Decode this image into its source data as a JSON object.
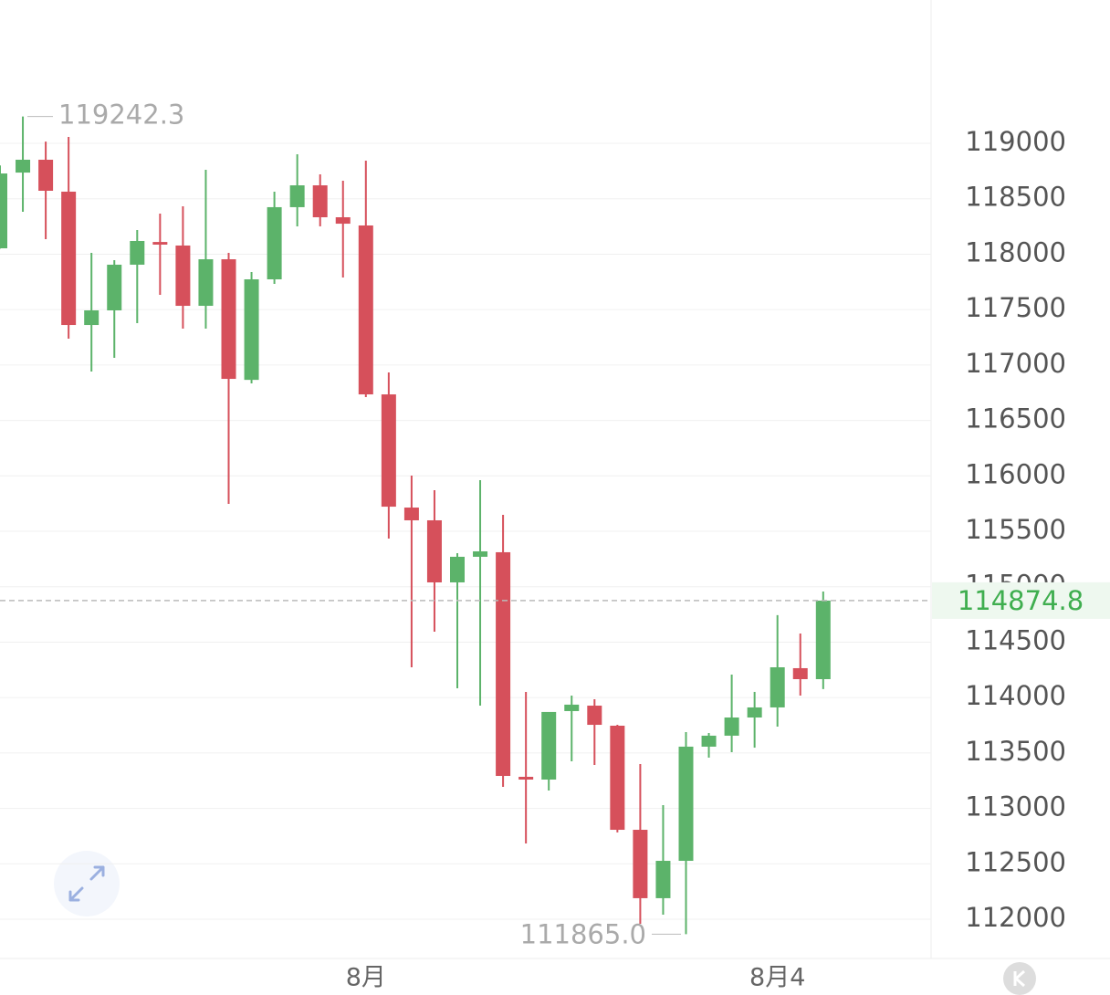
{
  "chart_data": {
    "type": "candlestick",
    "categories": [
      null,
      null,
      null,
      null,
      null,
      null,
      null,
      null,
      null,
      null,
      null,
      null,
      null,
      null,
      null,
      null,
      "8月",
      null,
      null,
      null,
      null,
      null,
      null,
      null,
      null,
      null,
      null,
      null,
      null,
      null,
      null,
      null,
      null,
      null,
      "8月4",
      null,
      null
    ],
    "series": [
      {
        "name": "open",
        "values": [
          118053,
          118736,
          118852,
          118564,
          117361,
          117493,
          117905,
          118110,
          118078,
          117534,
          117954,
          116866,
          117773,
          118424,
          118621,
          118333,
          118259,
          116735,
          115714,
          115599,
          115039,
          115270,
          115311,
          113285,
          113260,
          113878,
          113927,
          113746,
          112807,
          112190,
          112527,
          113557,
          113656,
          113820,
          113911,
          114265,
          114166
        ]
      },
      {
        "name": "high",
        "values": [
          118800,
          119242.3,
          119016,
          119058,
          118012,
          117946,
          118218,
          118366,
          118432,
          118761,
          118012,
          117839,
          118564,
          118901,
          118720,
          118662,
          118844,
          116933,
          116002,
          115871,
          115302,
          115961,
          115648,
          114051,
          113870,
          114018,
          113985,
          113754,
          113400,
          113030,
          113688,
          113680,
          114207,
          114051,
          114743,
          114578,
          114957
        ]
      },
      {
        "name": "low",
        "values": [
          118050,
          118382,
          118135,
          117238,
          116941,
          117065,
          117378,
          117633,
          117328,
          117328,
          115747,
          116834,
          117732,
          118251,
          118251,
          117789,
          116711,
          115434,
          114273,
          114594,
          114084,
          113927,
          113194,
          112684,
          113161,
          113425,
          113392,
          112783,
          111959,
          112041,
          111865,
          113458,
          113507,
          113548,
          113738,
          114018,
          114076
        ]
      },
      {
        "name": "close",
        "values": [
          118728,
          118852,
          118572,
          117361,
          117493,
          117905,
          118119,
          118086,
          117534,
          117954,
          116875,
          117773,
          118424,
          118621,
          118333,
          118275,
          116735,
          115722,
          115599,
          115039,
          115270,
          115319,
          113293,
          113260,
          113870,
          113936,
          113754,
          112807,
          112190,
          112527,
          113557,
          113656,
          113820,
          113911,
          114273,
          114166,
          114874.8
        ]
      }
    ],
    "up_color": "#5cb36a",
    "down_color": "#d6505b",
    "ylim": [
      111646,
      120293
    ],
    "yticks": [
      112000,
      112500,
      113000,
      113500,
      114000,
      114500,
      115000,
      115500,
      116000,
      116500,
      117000,
      117500,
      118000,
      118500,
      119000
    ],
    "grid": true,
    "max_marker": {
      "value": 119242.3,
      "label": "119242.3"
    },
    "min_marker": {
      "value": 111865,
      "label": "111865.0"
    },
    "last_price": {
      "value": 114874.8,
      "label": "114874.8"
    }
  }
}
